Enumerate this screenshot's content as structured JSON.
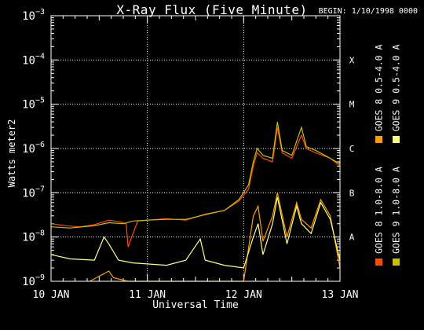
{
  "chart_data": {
    "type": "line",
    "title": "X-Ray Flux (Five Minute)",
    "begin": "BEGIN: 1/10/1998 0000",
    "xlabel": "Universal Time",
    "ylabel": "Watts meter2",
    "yscale": "log",
    "ylim": [
      1e-09,
      0.001
    ],
    "xlim": [
      0,
      3
    ],
    "x_ticks": [
      {
        "v": 0,
        "label": "10 JAN"
      },
      {
        "v": 1,
        "label": "11 JAN"
      },
      {
        "v": 2,
        "label": "12 JAN"
      },
      {
        "v": 3,
        "label": "13 JAN"
      }
    ],
    "y_ticks": [
      {
        "exp": -9,
        "label": "10",
        "sup": "−9"
      },
      {
        "exp": -8,
        "label": "10",
        "sup": "−8"
      },
      {
        "exp": -7,
        "label": "10",
        "sup": "−7"
      },
      {
        "exp": -6,
        "label": "10",
        "sup": "−6"
      },
      {
        "exp": -5,
        "label": "10",
        "sup": "−5"
      },
      {
        "exp": -4,
        "label": "10",
        "sup": "−4"
      },
      {
        "exp": -3,
        "label": "10",
        "sup": "−3"
      }
    ],
    "classes": [
      {
        "label": "A",
        "exp": -8
      },
      {
        "label": "B",
        "exp": -7
      },
      {
        "label": "C",
        "exp": -6
      },
      {
        "label": "M",
        "exp": -5
      },
      {
        "label": "X",
        "exp": -4
      }
    ],
    "grid": true,
    "series": [
      {
        "name": "GOES 8 1.0-8.0 A",
        "color": "#ff4a00",
        "points": [
          [
            0,
            2e-08
          ],
          [
            0.15,
            1.8e-08
          ],
          [
            0.3,
            1.7e-08
          ],
          [
            0.45,
            1.9e-08
          ],
          [
            0.6,
            2.4e-08
          ],
          [
            0.72,
            2.2e-08
          ],
          [
            0.78,
            2e-08
          ],
          [
            0.8,
            6e-09
          ],
          [
            0.9,
            2.3e-08
          ],
          [
            1.0,
            2.4e-08
          ],
          [
            1.2,
            2.6e-08
          ],
          [
            1.4,
            2.4e-08
          ],
          [
            1.6,
            3.3e-08
          ],
          [
            1.8,
            4e-08
          ],
          [
            1.95,
            6.5e-08
          ],
          [
            2.05,
            1.2e-07
          ],
          [
            2.1,
            4e-07
          ],
          [
            2.14,
            8e-07
          ],
          [
            2.2,
            6e-07
          ],
          [
            2.3,
            5e-07
          ],
          [
            2.35,
            3e-06
          ],
          [
            2.4,
            8e-07
          ],
          [
            2.5,
            6e-07
          ],
          [
            2.6,
            2e-06
          ],
          [
            2.65,
            1e-06
          ],
          [
            2.75,
            8e-07
          ],
          [
            2.9,
            6e-07
          ],
          [
            3.0,
            4e-07
          ]
        ]
      },
      {
        "name": "GOES 8 0.5-4.0 A",
        "color": "#ff9c00",
        "points": [
          [
            0.4,
            1e-09
          ],
          [
            0.6,
            1.7e-09
          ],
          [
            0.65,
            1.2e-09
          ],
          [
            0.8,
            1e-09
          ],
          [
            2.0,
            1e-09
          ],
          [
            2.1,
            3e-08
          ],
          [
            2.15,
            5e-08
          ],
          [
            2.2,
            8e-09
          ],
          [
            2.3,
            3e-08
          ],
          [
            2.35,
            1e-07
          ],
          [
            2.45,
            1e-08
          ],
          [
            2.55,
            6e-08
          ],
          [
            2.6,
            2.5e-08
          ],
          [
            2.7,
            1.6e-08
          ],
          [
            2.8,
            7e-08
          ],
          [
            2.9,
            3e-08
          ],
          [
            3.0,
            2e-09
          ]
        ]
      },
      {
        "name": "GOES 9 1.0-8.0 A",
        "color": "#c8c000",
        "points": [
          [
            0,
            1.7e-08
          ],
          [
            0.2,
            1.6e-08
          ],
          [
            0.45,
            1.8e-08
          ],
          [
            0.6,
            2.1e-08
          ],
          [
            0.75,
            2e-08
          ],
          [
            0.85,
            2.3e-08
          ],
          [
            1.0,
            2.4e-08
          ],
          [
            1.2,
            2.5e-08
          ],
          [
            1.4,
            2.5e-08
          ],
          [
            1.6,
            3.2e-08
          ],
          [
            1.8,
            4e-08
          ],
          [
            1.95,
            7e-08
          ],
          [
            2.05,
            1.5e-07
          ],
          [
            2.1,
            5e-07
          ],
          [
            2.14,
            1e-06
          ],
          [
            2.2,
            7e-07
          ],
          [
            2.3,
            6e-07
          ],
          [
            2.35,
            4e-06
          ],
          [
            2.4,
            9e-07
          ],
          [
            2.5,
            7e-07
          ],
          [
            2.6,
            3e-06
          ],
          [
            2.65,
            1.1e-06
          ],
          [
            2.75,
            9e-07
          ],
          [
            2.9,
            6e-07
          ],
          [
            3.0,
            4.5e-07
          ]
        ]
      },
      {
        "name": "GOES 9 0.5-4.0 A",
        "color": "#ffff80",
        "points": [
          [
            0,
            4e-09
          ],
          [
            0.2,
            3.2e-09
          ],
          [
            0.45,
            3e-09
          ],
          [
            0.55,
            1e-08
          ],
          [
            0.6,
            7e-09
          ],
          [
            0.7,
            3e-09
          ],
          [
            0.85,
            2.6e-09
          ],
          [
            1.2,
            2.3e-09
          ],
          [
            1.4,
            3e-09
          ],
          [
            1.55,
            9e-09
          ],
          [
            1.6,
            3e-09
          ],
          [
            1.8,
            2.3e-09
          ],
          [
            2.0,
            2e-09
          ],
          [
            2.1,
            1e-08
          ],
          [
            2.15,
            2e-08
          ],
          [
            2.2,
            4e-09
          ],
          [
            2.3,
            2e-08
          ],
          [
            2.35,
            8e-08
          ],
          [
            2.45,
            7e-09
          ],
          [
            2.55,
            5e-08
          ],
          [
            2.6,
            2e-08
          ],
          [
            2.7,
            1.2e-08
          ],
          [
            2.8,
            6e-08
          ],
          [
            2.9,
            2.5e-08
          ],
          [
            3.0,
            3e-09
          ]
        ]
      }
    ]
  }
}
